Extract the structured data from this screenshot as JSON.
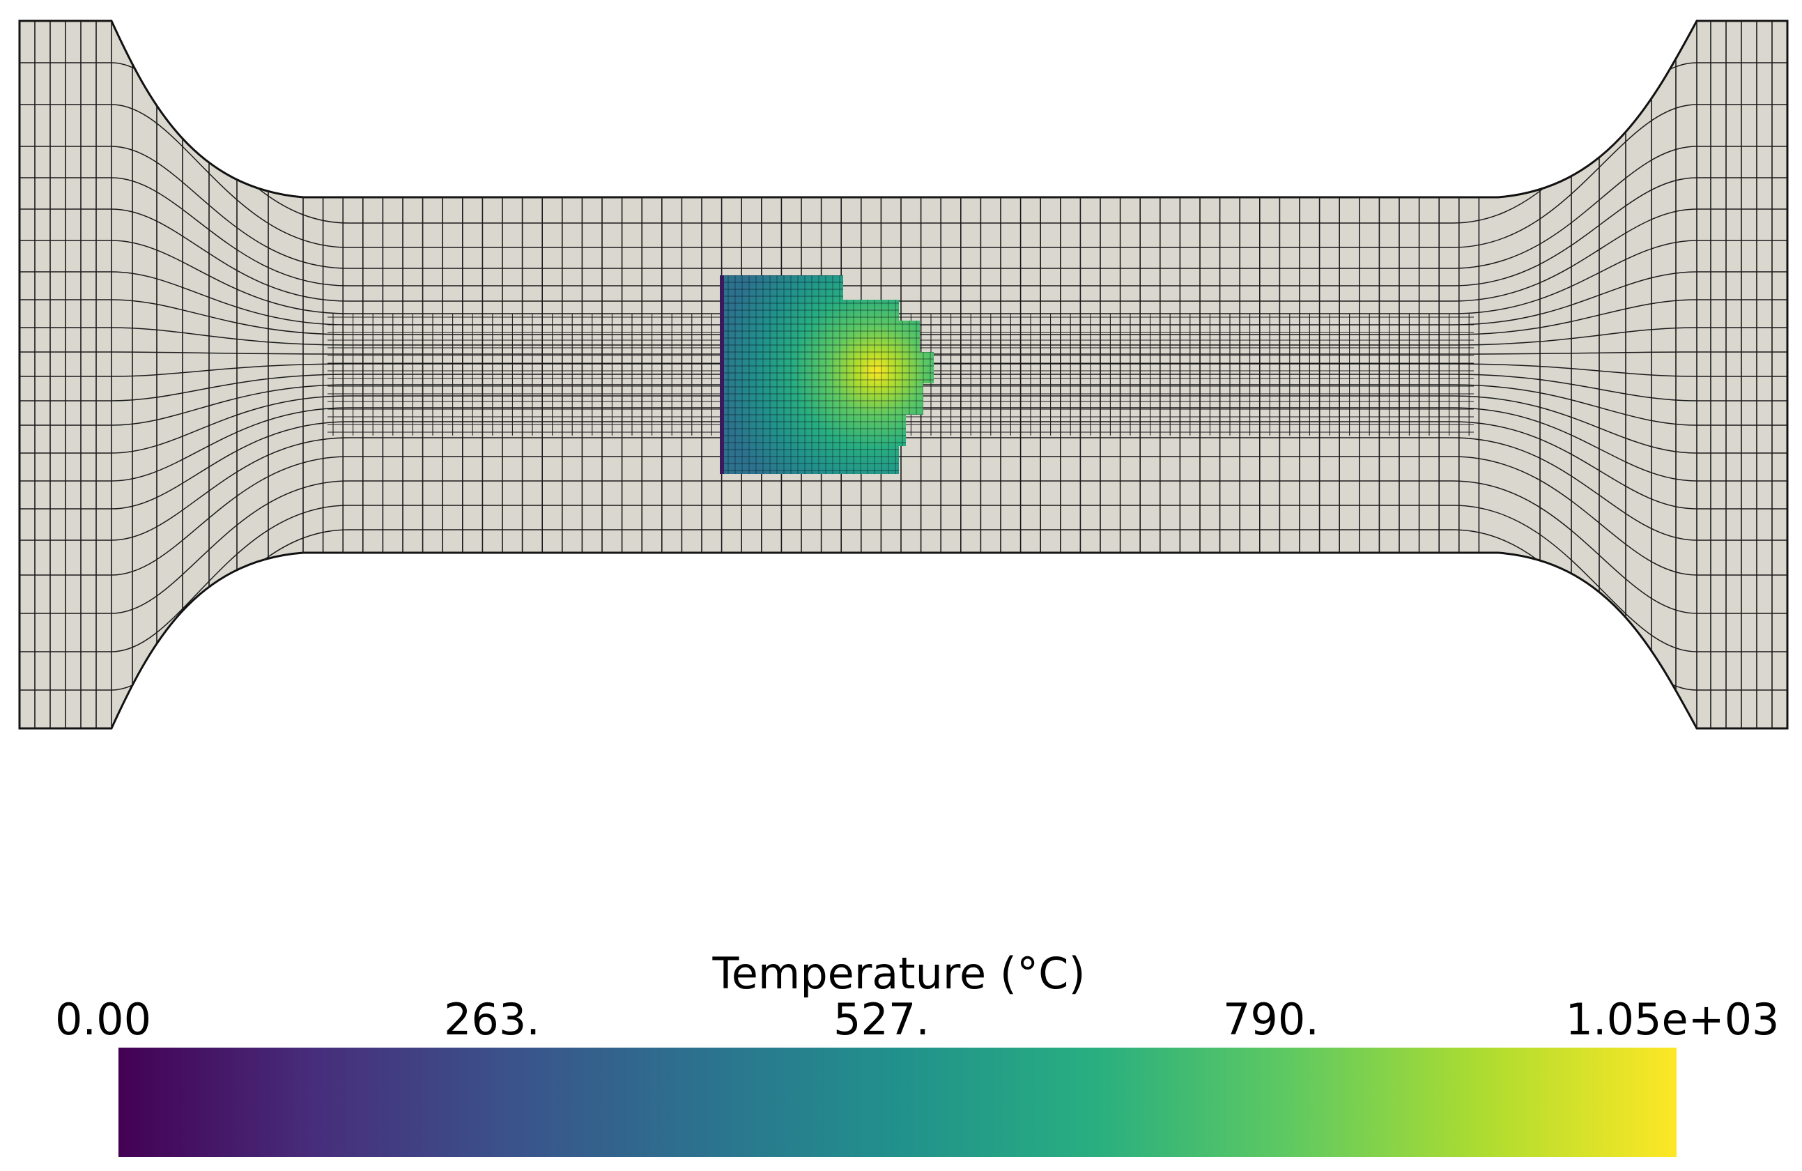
{
  "colorbar": {
    "title": "Temperature (°C)",
    "ticks": [
      "0.00",
      "263.",
      "527.",
      "790.",
      "1.05e+03"
    ],
    "range": [
      0,
      1050
    ],
    "colormap": "viridis",
    "colors": [
      "#440154",
      "#472d7b",
      "#3b528b",
      "#2c728e",
      "#21918c",
      "#28ae80",
      "#5ec962",
      "#addc30",
      "#fde725"
    ]
  },
  "mesh": {
    "fill_color": "#d9d7ce",
    "line_color": "#1a1a1a"
  },
  "heat_zone": {
    "peak": 1050
  }
}
